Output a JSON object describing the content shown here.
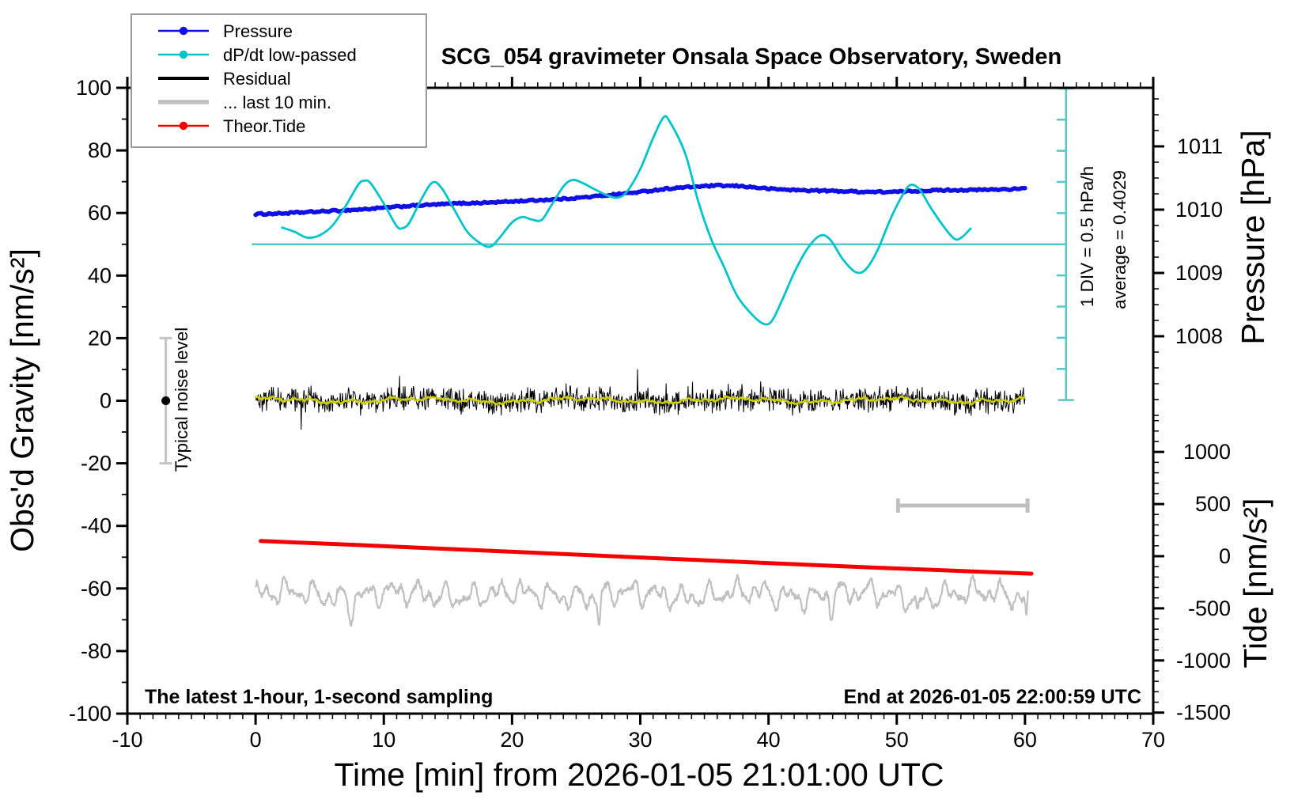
{
  "page": {
    "background": "#ffffff"
  },
  "title": {
    "text": "SCG_054 gravimeter Onsala Space Observatory, Sweden"
  },
  "axes": {
    "time": {
      "label": "Time [min] from 2026-01-05 21:01:00 UTC",
      "min": -10,
      "max": 70,
      "major_ticks": [
        -10,
        0,
        10,
        20,
        30,
        40,
        50,
        60,
        70
      ],
      "minor_step": 1
    },
    "gravity": {
      "label": "Obs'd Gravity [nm/s²]",
      "min": -100,
      "max": 100,
      "major_ticks": [
        -100,
        -80,
        -60,
        -40,
        -20,
        0,
        20,
        40,
        60,
        80,
        100
      ],
      "minor_step": 10
    },
    "pressure": {
      "label": "Pressure [hPa]",
      "major_ticks": [
        1008,
        1009,
        1010,
        1011
      ],
      "minor_step": 0.25
    },
    "tide": {
      "label": "Tide [nm/s²]",
      "major_ticks": [
        -1500,
        -1000,
        -500,
        0,
        500,
        1000
      ],
      "minor_step": 100
    }
  },
  "legend": {
    "items": [
      {
        "label": "Pressure",
        "color": "#0f0fe6",
        "style": "line-dot"
      },
      {
        "label": "dP/dt low-passed",
        "color": "#00c4cc",
        "style": "line-dot"
      },
      {
        "label": "Residual",
        "color": "#000000",
        "style": "thick-line"
      },
      {
        "label": "... last 10 min.",
        "color": "#c0c0c0",
        "style": "thick-line"
      },
      {
        "label": "Theor.Tide",
        "color": "#f40000",
        "style": "line-dot"
      }
    ]
  },
  "annotations": {
    "sampling_note": "The latest 1-hour, 1-second sampling",
    "end_note": "End at 2026-01-05 22:00:59 UTC",
    "div_note": "1 DIV = 0.5 hPa/h",
    "average_note": "average = 0.4029",
    "noise_note": "Typical noise level"
  },
  "chart_data": {
    "type": "line",
    "x_axis": {
      "label": "Time [min] from 2026-01-05 21:01:00 UTC",
      "range": [
        -10,
        70
      ],
      "units": "min"
    },
    "y_axes": {
      "gravity": {
        "label": "Obs'd Gravity [nm/s²]",
        "range": [
          -100,
          100
        ],
        "side": "left"
      },
      "pressure": {
        "label": "Pressure [hPa]",
        "labeled_range": [
          1008,
          1011
        ],
        "side": "right-upper"
      },
      "tide": {
        "label": "Tide [nm/s²]",
        "labeled_range": [
          -1500,
          1000
        ],
        "side": "right-lower"
      }
    },
    "series": [
      {
        "name": "Pressure",
        "axis": "pressure",
        "units": "hPa",
        "color": "#0f0fe6",
        "points": [
          [
            0,
            1009.93
          ],
          [
            2,
            1009.94
          ],
          [
            4,
            1009.96
          ],
          [
            6,
            1009.98
          ],
          [
            8,
            1010.0
          ],
          [
            10,
            1010.03
          ],
          [
            12,
            1010.06
          ],
          [
            14,
            1010.08
          ],
          [
            16,
            1010.1
          ],
          [
            18,
            1010.11
          ],
          [
            20,
            1010.13
          ],
          [
            22,
            1010.15
          ],
          [
            24,
            1010.17
          ],
          [
            26,
            1010.2
          ],
          [
            28,
            1010.24
          ],
          [
            30,
            1010.28
          ],
          [
            32,
            1010.33
          ],
          [
            34,
            1010.36
          ],
          [
            36,
            1010.38
          ],
          [
            38,
            1010.37
          ],
          [
            40,
            1010.33
          ],
          [
            42,
            1010.31
          ],
          [
            44,
            1010.3
          ],
          [
            46,
            1010.29
          ],
          [
            48,
            1010.28
          ],
          [
            50,
            1010.28
          ],
          [
            52,
            1010.3
          ],
          [
            54,
            1010.31
          ],
          [
            56,
            1010.31
          ],
          [
            58,
            1010.32
          ],
          [
            60,
            1010.33
          ]
        ]
      },
      {
        "name": "dP/dt low-passed",
        "axis": "dpdt",
        "units": "hPa/h",
        "color": "#00c4cc",
        "zero_at_gravity": 50,
        "gravity_units_per_hPa_per_h": 19.38,
        "average": 0.4029,
        "points": [
          [
            2,
            0.28
          ],
          [
            3,
            0.21
          ],
          [
            4,
            0.11
          ],
          [
            5,
            0.15
          ],
          [
            6,
            0.31
          ],
          [
            7,
            0.62
          ],
          [
            8,
            0.98
          ],
          [
            8.5,
            1.05
          ],
          [
            9,
            1.0
          ],
          [
            10,
            0.67
          ],
          [
            11,
            0.3
          ],
          [
            11.5,
            0.27
          ],
          [
            12,
            0.36
          ],
          [
            13,
            0.77
          ],
          [
            13.8,
            1.02
          ],
          [
            14.5,
            0.93
          ],
          [
            15.5,
            0.57
          ],
          [
            16.5,
            0.21
          ],
          [
            17.5,
            0.02
          ],
          [
            18.3,
            -0.04
          ],
          [
            19,
            0.1
          ],
          [
            20,
            0.36
          ],
          [
            20.8,
            0.45
          ],
          [
            21.5,
            0.41
          ],
          [
            22.3,
            0.4
          ],
          [
            23,
            0.62
          ],
          [
            24,
            0.95
          ],
          [
            24.7,
            1.06
          ],
          [
            25.5,
            1.01
          ],
          [
            26.5,
            0.9
          ],
          [
            27.5,
            0.8
          ],
          [
            28.3,
            0.77
          ],
          [
            29,
            0.88
          ],
          [
            30,
            1.24
          ],
          [
            31,
            1.75
          ],
          [
            31.8,
            2.09
          ],
          [
            32.3,
            2.02
          ],
          [
            33.5,
            1.5
          ],
          [
            34.5,
            0.72
          ],
          [
            35.5,
            0.1
          ],
          [
            36.5,
            -0.36
          ],
          [
            37.5,
            -0.83
          ],
          [
            38.5,
            -1.11
          ],
          [
            39.5,
            -1.3
          ],
          [
            40.2,
            -1.28
          ],
          [
            41,
            -0.95
          ],
          [
            42,
            -0.47
          ],
          [
            43,
            -0.08
          ],
          [
            44,
            0.14
          ],
          [
            44.8,
            0.08
          ],
          [
            45.8,
            -0.25
          ],
          [
            46.8,
            -0.46
          ],
          [
            47.6,
            -0.41
          ],
          [
            48.5,
            -0.1
          ],
          [
            49.5,
            0.41
          ],
          [
            50.5,
            0.83
          ],
          [
            51.1,
            0.98
          ],
          [
            51.8,
            0.9
          ],
          [
            52.6,
            0.62
          ],
          [
            53.6,
            0.31
          ],
          [
            54.5,
            0.09
          ],
          [
            55.1,
            0.12
          ],
          [
            55.8,
            0.27
          ]
        ]
      },
      {
        "name": "Residual",
        "axis": "gravity",
        "units": "nm/s²",
        "color": "#000000",
        "mean": 0,
        "typical_amplitude": 4.6,
        "spike_amplitude": 9,
        "t_range": [
          0,
          60
        ],
        "n_points": 1400,
        "seed": 42
      },
      {
        "name": "Residual smoothed",
        "axis": "gravity",
        "units": "nm/s²",
        "color": "#ccce00",
        "mean": 0.15,
        "wiggle_amplitude": 1.0,
        "t_range": [
          0,
          60
        ],
        "seed": 99
      },
      {
        "name": "... last 10 min.",
        "axis": "gravity",
        "units": "nm/s² (displayed at offset)",
        "color": "#c0c0c0",
        "display_offset": -62,
        "wiggle_amplitude": 4,
        "t_range": [
          0,
          60.3
        ],
        "seed": 7,
        "dips": [
          [
            7.4,
            -4.5,
            0.25
          ],
          [
            26.8,
            -9,
            0.15
          ],
          [
            44.9,
            -4.5,
            0.18
          ],
          [
            51.6,
            -6.5,
            0.15
          ],
          [
            60.1,
            -7.5,
            0.1
          ]
        ]
      },
      {
        "name": "Theor.Tide",
        "axis": "tide",
        "units": "nm/s²",
        "color": "#f40000",
        "points": [
          [
            0.4,
            146
          ],
          [
            12,
            86
          ],
          [
            24,
            21
          ],
          [
            36,
            -45
          ],
          [
            48,
            -108
          ],
          [
            60.5,
            -168
          ]
        ]
      }
    ],
    "reference_marks": {
      "dpdt_zero_line": {
        "gravity_value": 50,
        "t_start": -0.3,
        "t_end": 63.2
      },
      "dpdt_scalebar": {
        "t": 63.2,
        "center_gravity": 50,
        "divisions": 10,
        "div_value_hPa_per_h": 0.5
      },
      "last10_span": {
        "t_start": 50.1,
        "t_end": 60.2,
        "gravity_y": -33.5
      },
      "noise_bar": {
        "t": -7,
        "gravity_center": 0,
        "gravity_halfspan": 20
      }
    },
    "grid": false,
    "legend_position": "top-left"
  }
}
